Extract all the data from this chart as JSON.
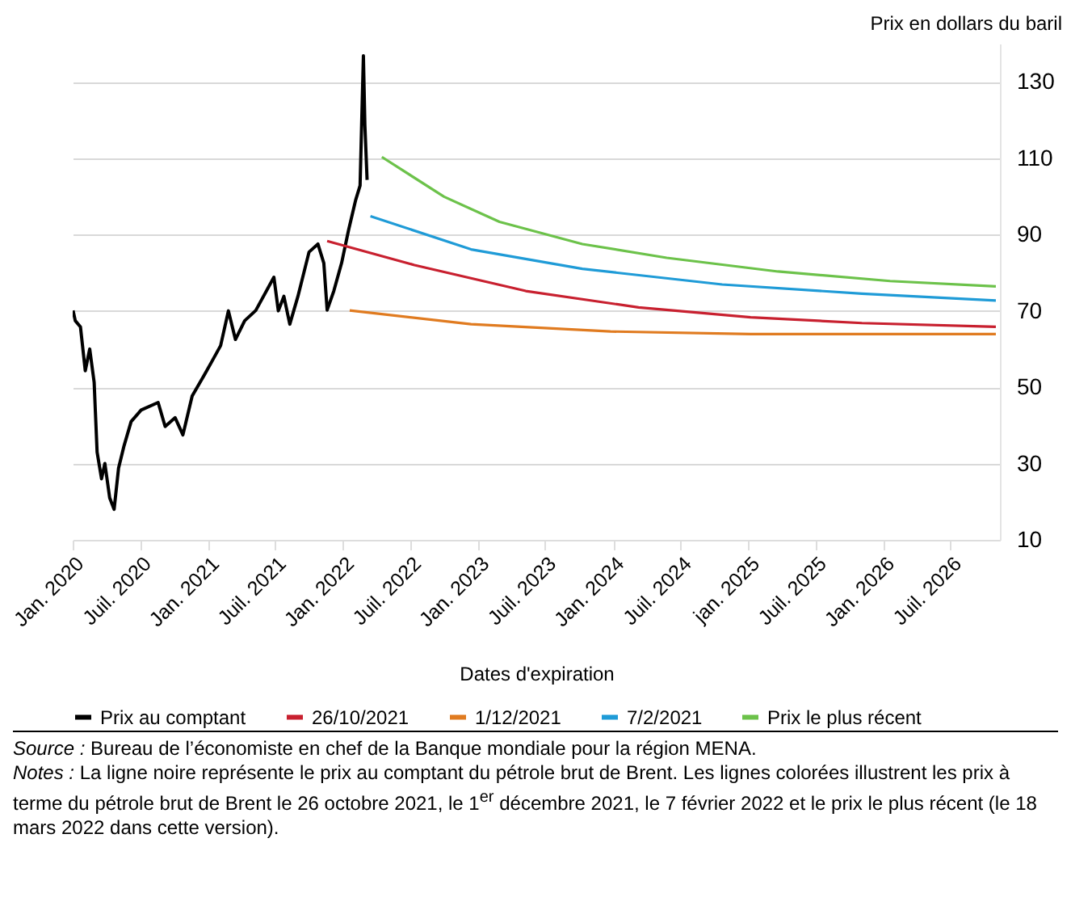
{
  "chart_data": {
    "type": "line",
    "xlabel": "Dates d'expiration",
    "ylabel": "Prix en dollars du baril",
    "xlim": [
      "2020-01-01",
      "2026-11-12"
    ],
    "xticks": [
      {
        "value": "2020-01-01",
        "label": "Jan. 2020"
      },
      {
        "value": "2020-07-01",
        "label": "Juil. 2020"
      },
      {
        "value": "2021-01-01",
        "label": "Jan. 2021"
      },
      {
        "value": "2021-07-01",
        "label": "Juil. 2021"
      },
      {
        "value": "2022-01-01",
        "label": "Jan. 2022"
      },
      {
        "value": "2022-07-01",
        "label": "Juil. 2022"
      },
      {
        "value": "2023-01-01",
        "label": "Jan. 2023"
      },
      {
        "value": "2023-07-01",
        "label": "Juil. 2023"
      },
      {
        "value": "2024-01-01",
        "label": "Jan. 2024"
      },
      {
        "value": "2024-07-01",
        "label": "Juil. 2024"
      },
      {
        "value": "2025-01-01",
        "label": "jan. 2025"
      },
      {
        "value": "2025-07-01",
        "label": "Juil. 2025"
      },
      {
        "value": "2026-01-01",
        "label": "Jan. 2026"
      },
      {
        "value": "2026-07-01",
        "label": "Juil. 2026"
      }
    ],
    "ylim": [
      10,
      140
    ],
    "yticks": [
      10,
      30,
      50,
      70,
      90,
      110,
      130
    ],
    "grid": "y",
    "legend": "bottom",
    "series": [
      {
        "name": "Prix au comptant",
        "color": "#000000",
        "x": [
          "2020-01-02",
          "2020-01-08",
          "2020-01-22",
          "2020-02-04",
          "2020-02-16",
          "2020-02-28",
          "2020-03-07",
          "2020-03-19",
          "2020-03-28",
          "2020-04-10",
          "2020-04-22",
          "2020-05-04",
          "2020-05-19",
          "2020-06-07",
          "2020-07-04",
          "2020-08-19",
          "2020-09-07",
          "2020-10-04",
          "2020-10-25",
          "2020-11-19",
          "2020-12-19",
          "2021-01-10",
          "2021-02-04",
          "2021-02-25",
          "2021-03-16",
          "2021-04-10",
          "2021-05-10",
          "2021-06-28",
          "2021-07-10",
          "2021-07-25",
          "2021-08-10",
          "2021-09-01",
          "2021-10-01",
          "2021-10-25",
          "2021-11-10",
          "2021-11-19",
          "2021-12-07",
          "2021-12-28",
          "2022-01-16",
          "2022-02-04",
          "2022-02-16",
          "2022-02-25",
          "2022-03-01",
          "2022-03-07"
        ],
        "values": [
          70.1,
          67.4,
          65.8,
          54.3,
          60,
          51.3,
          33,
          26,
          30,
          21,
          18,
          28.8,
          34.7,
          41,
          44,
          46,
          39.7,
          42,
          37.5,
          47.7,
          52.7,
          56.5,
          60.9,
          70,
          62.5,
          67.4,
          70.1,
          78.8,
          70,
          73.8,
          66.5,
          73.8,
          85.4,
          87.5,
          82.5,
          70.2,
          75.2,
          82.5,
          91.2,
          99,
          102.8,
          136.8,
          118.7,
          104.3
        ]
      },
      {
        "name": "26/10/2021",
        "color": "#c8202f",
        "x": [
          "2021-11-19",
          "2022-07-13",
          "2023-05-10",
          "2024-03-10",
          "2025-01-07",
          "2025-11-04",
          "2026-11-01"
        ],
        "values": [
          88.3,
          82,
          75.2,
          70.9,
          68.3,
          66.8,
          65.8
        ]
      },
      {
        "name": "1/12/2021",
        "color": "#e07b20",
        "x": [
          "2022-01-19",
          "2022-12-13",
          "2023-12-25",
          "2025-01-07",
          "2026-11-01"
        ],
        "values": [
          70.1,
          66.5,
          64.6,
          63.9,
          63.9
        ]
      },
      {
        "name": "7/2/2021",
        "color": "#1f9bd7",
        "x": [
          "2022-03-16",
          "2022-12-13",
          "2023-10-10",
          "2024-10-22",
          "2025-11-04",
          "2026-11-01"
        ],
        "values": [
          94.8,
          86.1,
          81,
          76.9,
          74.5,
          72.7
        ]
      },
      {
        "name": "Prix le plus récent",
        "color": "#6cc24a",
        "x": [
          "2022-04-16",
          "2022-10-01",
          "2023-02-28",
          "2023-10-10",
          "2024-05-25",
          "2025-03-22",
          "2026-01-19",
          "2026-11-01"
        ],
        "values": [
          110.3,
          99.9,
          93.3,
          87.5,
          83.9,
          80.3,
          77.8,
          76.4
        ]
      }
    ],
    "annotations": [
      "Source : Bureau de l’économiste en chef de la Banque mondiale pour la région MENA.",
      "Notes : La ligne noire représente le prix au comptant du pétrole brut de Brent. Les lignes colorées illustrent les prix à terme du pétrole brut de Brent le 26 octobre 2021, le 1$^{er}$ décembre 2021, le 7 février 2022 et le prix le plus récent (le 18 mars 2022 dans cette version)."
    ]
  }
}
